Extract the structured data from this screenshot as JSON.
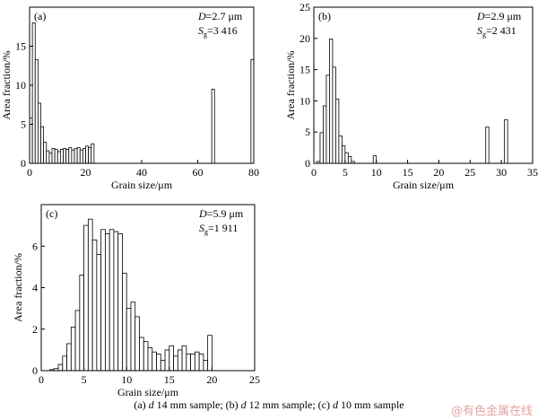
{
  "chart_data": [
    {
      "id": "a",
      "type": "bar",
      "panel_label": "(a)",
      "xlabel": "Grain size/μm",
      "ylabel": "Area fraction/%",
      "xlim": [
        0,
        80
      ],
      "ylim": [
        0,
        20
      ],
      "xticks": [
        0,
        20,
        40,
        60,
        80
      ],
      "yticks": [
        0,
        5,
        10,
        15
      ],
      "bar_width": 1,
      "D_label": "D=2.7 μm",
      "S_label": "Sg=3 416",
      "x": [
        1,
        2,
        3,
        4,
        5,
        6,
        7,
        8,
        9,
        10,
        11,
        12,
        13,
        14,
        15,
        16,
        17,
        18,
        19,
        20,
        21,
        22,
        23,
        66,
        80
      ],
      "values": [
        5.8,
        18,
        13.3,
        7.7,
        4.7,
        2.7,
        1.6,
        1.3,
        1.9,
        1.8,
        1.5,
        1.8,
        1.9,
        1.8,
        2.0,
        1.7,
        1.9,
        2.0,
        1.7,
        1.9,
        2.2,
        2.0,
        2.5,
        9.5,
        13.3
      ]
    },
    {
      "id": "b",
      "type": "bar",
      "panel_label": "(b)",
      "xlabel": "Grain size/μm",
      "ylabel": "Area fraction/%",
      "xlim": [
        0,
        35
      ],
      "ylim": [
        0,
        25
      ],
      "xticks": [
        0,
        5,
        10,
        15,
        20,
        25,
        30,
        35
      ],
      "yticks": [
        0,
        5,
        10,
        15,
        20,
        25
      ],
      "bar_width": 0.5,
      "D_label": "D=2.9 μm",
      "S_label": "Sg=2 431",
      "x": [
        1.0,
        1.5,
        2.0,
        2.5,
        3.0,
        3.5,
        4.0,
        4.5,
        5.0,
        5.5,
        6.0,
        6.5,
        10.0,
        28.0,
        31.0
      ],
      "values": [
        0.3,
        4.9,
        9.2,
        14.1,
        19.9,
        15.4,
        10.3,
        4.4,
        2.8,
        1.7,
        1.1,
        0.3,
        1.2,
        5.8,
        7.0
      ]
    },
    {
      "id": "c",
      "type": "bar",
      "panel_label": "(c)",
      "xlabel": "Grain size/μm",
      "ylabel": "Area fraction/%",
      "xlim": [
        0,
        25
      ],
      "ylim": [
        0,
        8
      ],
      "xticks": [
        0,
        5,
        10,
        15,
        20,
        25
      ],
      "yticks": [
        0,
        2,
        4,
        6
      ],
      "bar_width": 0.5,
      "D_label": "D=5.9 μm",
      "S_label": "Sg=1 911",
      "x": [
        1.5,
        2.0,
        2.5,
        3.0,
        3.5,
        4.0,
        4.5,
        5.0,
        5.5,
        6.0,
        6.5,
        7.0,
        7.5,
        8.0,
        8.5,
        9.0,
        9.5,
        10.0,
        10.5,
        11.0,
        11.5,
        12.0,
        12.5,
        13.0,
        13.5,
        14.0,
        14.5,
        15.0,
        15.5,
        16.0,
        16.5,
        17.0,
        17.5,
        18.0,
        18.5,
        19.0,
        19.5,
        20.0
      ],
      "values": [
        0.05,
        0.1,
        0.3,
        0.7,
        1.3,
        2.1,
        2.9,
        4.6,
        7.0,
        7.3,
        6.3,
        5.6,
        6.8,
        6.6,
        6.8,
        6.7,
        6.6,
        4.7,
        3.0,
        3.3,
        2.6,
        1.6,
        1.4,
        1.1,
        0.9,
        0.8,
        0.5,
        1.0,
        1.2,
        0.7,
        1.0,
        1.2,
        0.8,
        0.8,
        0.9,
        0.8,
        0.5,
        1.7
      ]
    }
  ],
  "caption": {
    "a_pre": "(a) ",
    "d": "d",
    "a_post": " 14 mm sample; (b) ",
    "b_post": " 12 mm sample; (c) ",
    "c_post": " 10 mm sample"
  },
  "watermark": "@有色金属在线"
}
